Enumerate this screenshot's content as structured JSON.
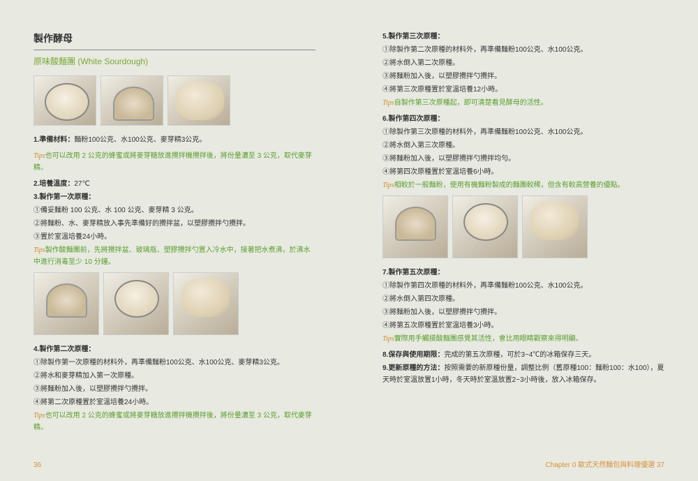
{
  "left": {
    "title": "製作酵母",
    "subtitle": "原味酸麵團 (White Sourdough)",
    "s1_head": "1.準備材料：",
    "s1_body": "麵粉100公克、水100公克、麥芽精3公克。",
    "tip1": "也可以改用 2 公克的蜂蜜或將麥芽糖放進攪拌機攪拌後，將份量濃至 3 公克，取代麥芽精。",
    "s2_head": "2.培養溫度：",
    "s2_body": "27℃",
    "s3_head": "3.製作第一次原種：",
    "s3_1": "①備妥麵粉 100 公克、水 100 公克、麥芽精 3 公克。",
    "s3_2": "②將麵粉、水、麥芽精放入事先準備好的攪拌盆，以塑膠攪拌勺攪拌。",
    "s3_3": "③置於室溫培養24小時。",
    "tip2": "製作酸麵團前，先將攪拌盆、玻璃瓶、塑膠攪拌勺置入冷水中，接著把水煮沸，於沸水中進行消毒至少 10 分鐘。",
    "s4_head": "4.製作第二次原種：",
    "s4_1": "①除製作第一次原種的材料外，再準備麵粉100公克、水100公克、麥芽精3公克。",
    "s4_2": "②將水和麥芽精加入第一次原種。",
    "s4_3": "③將麵粉加入後，以塑膠攪拌勺攪拌。",
    "s4_4": "④將第二次原種置於室溫培養24小時。",
    "tip3": "也可以改用 2 公克的蜂蜜或將麥芽糖放進攪拌機攪拌後，將份量濃至 3 公克，取代麥芽精。",
    "pagenum": "36"
  },
  "right": {
    "s5_head": "5.製作第三次原種：",
    "s5_1": "①除製作第二次原種的材料外，再準備麵粉100公克、水100公克。",
    "s5_2": "②將水倒入第二次原種。",
    "s5_3": "③將麵粉加入後，以塑膠攪拌勺攪拌。",
    "s5_4": "④將第三次原種置於室溫培養12小時。",
    "tip5": "自製作第三次原種起，即可清楚看見酵母的活性。",
    "s6_head": "6.製作第四次原種：",
    "s6_1": "①除製作第三次原種的材料外，再準備麵粉100公克、水100公克。",
    "s6_2": "②將水倒入第三次原種。",
    "s6_3": "③將麵粉加入後，以塑膠攪拌勺攪拌均勻。",
    "s6_4": "④將第四次原種置於室溫培養6小時。",
    "tip6": "相較於一般麵粉，使用有機麵粉製成的麵團較稀，但含有較高營養的優點。",
    "s7_head": "7.製作第五次原種：",
    "s7_1": "①除製作第四次原種的材料外，再準備麵粉100公克、水100公克。",
    "s7_2": "②將水倒入第四次原種。",
    "s7_3": "③將麵粉加入後，以塑膠攪拌勺攪拌。",
    "s7_4": "④將第五次原種置於室溫培養3小時。",
    "tip7": "實際用手觸摸酸麵團感覺其活性，會比用眼睛觀察來得明顯。",
    "s8_head": "8.保存與使用期限：",
    "s8_body": "完成的第五次原種，可於3~4℃的冰箱保存三天。",
    "s9_head": "9.更新原種的方法：",
    "s9_body": "按照需要的新原種份量，調整比例（舊原種100：麵粉100：水100），夏天時於室溫放置1小時，冬天時於室溫放置2~3小時後，放入冰箱保存。",
    "footer": "Chapter 0 歐式天然麵包與料理優選  37"
  },
  "tips_label": "Tips"
}
